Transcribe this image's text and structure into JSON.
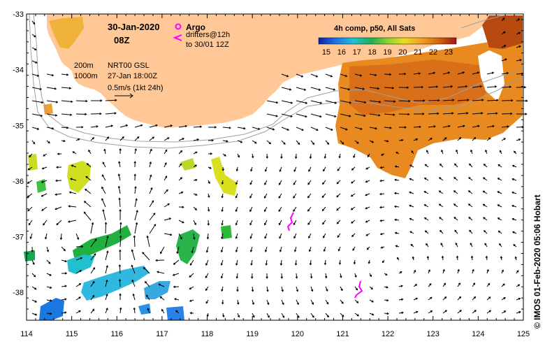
{
  "title": {
    "date": "30-Jan-2020",
    "time": "08Z"
  },
  "legend": {
    "argo_label": "Argo",
    "drifters_line1": "drifters@12h",
    "drifters_line2": "to 30/01 12Z",
    "argo_color": "#ff00ff",
    "drifter_color": "#ff00ff"
  },
  "info": {
    "depth1": "200m",
    "depth2": "1000m",
    "product": "NRT00 GSL",
    "product_time": "27-Jan 18:00Z",
    "scale": "0.5m/s (1kt 24h)"
  },
  "colorbar": {
    "title": "4h comp, p50, All Sats",
    "ticks": [
      "15",
      "16",
      "17",
      "18",
      "19",
      "20",
      "21",
      "22",
      "23"
    ],
    "min": 14.5,
    "max": 23.5
  },
  "axes": {
    "x_ticks": [
      "114",
      "115",
      "116",
      "117",
      "118",
      "119",
      "120",
      "121",
      "122",
      "123",
      "124",
      "125"
    ],
    "y_ticks": [
      "-33",
      "-34",
      "-35",
      "-36",
      "-37",
      "-38"
    ],
    "lon_range": [
      114,
      125
    ],
    "lat_range": [
      -38.5,
      -33
    ]
  },
  "credit": "© IMOS 01-Feb-2020 05:06 Hobart",
  "colors": {
    "land": "#ffc896",
    "isobath_200": "#a0a0a0",
    "isobath_1000": "#a0a0a0"
  }
}
